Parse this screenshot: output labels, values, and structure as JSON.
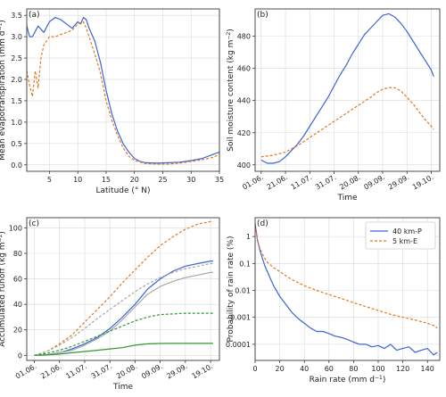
{
  "chart_data": [
    {
      "type": "line",
      "panel_label": "(a)",
      "xlabel": "Latitude (° N)",
      "ylabel": "Mean evapotranspiration (mm d",
      "ylabel_unit_sup": "−1",
      "ylabel_close": ")",
      "xlim": [
        1,
        35
      ],
      "ylim": [
        -0.15,
        3.65
      ],
      "xticks": [
        5,
        10,
        15,
        20,
        25,
        30,
        35
      ],
      "yticks": [
        0,
        0.5,
        1,
        1.5,
        2,
        2.5,
        3,
        3.5
      ],
      "ytick_labels": [
        "0.0",
        "0.5",
        "1.0",
        "1.5",
        "2.0",
        "2.5",
        "3.0",
        "3.5"
      ],
      "grid": true,
      "series": [
        {
          "color": "#3a64d8",
          "dash": "solid",
          "x": [
            1,
            1.5,
            2,
            3,
            4,
            5,
            6,
            7,
            8,
            9,
            10,
            10.5,
            11,
            11.5,
            12,
            13,
            14,
            15,
            16,
            17,
            18,
            19,
            20,
            21,
            22,
            24,
            26,
            28,
            30,
            32,
            34,
            35
          ],
          "y": [
            3.25,
            3.0,
            3.0,
            3.25,
            3.1,
            3.35,
            3.45,
            3.4,
            3.3,
            3.2,
            3.35,
            3.3,
            3.45,
            3.4,
            3.2,
            2.9,
            2.4,
            1.75,
            1.2,
            0.8,
            0.5,
            0.3,
            0.15,
            0.08,
            0.05,
            0.04,
            0.05,
            0.06,
            0.1,
            0.15,
            0.25,
            0.3
          ]
        },
        {
          "color": "#e07a1f",
          "dash": "dashed",
          "x": [
            1,
            1.5,
            2,
            2.5,
            3,
            3.5,
            4,
            5,
            6,
            7,
            8,
            9,
            10,
            11,
            11.5,
            12,
            13,
            14,
            15,
            16,
            17,
            18,
            19,
            20,
            22,
            24,
            26,
            28,
            30,
            32,
            34,
            35
          ],
          "y": [
            2.2,
            1.85,
            1.6,
            2.2,
            1.8,
            2.5,
            2.8,
            3.0,
            3.0,
            3.05,
            3.1,
            3.15,
            3.3,
            3.35,
            3.2,
            3.0,
            2.6,
            2.15,
            1.5,
            1.05,
            0.7,
            0.4,
            0.2,
            0.1,
            0.03,
            0.02,
            0.02,
            0.04,
            0.08,
            0.12,
            0.18,
            0.25
          ]
        }
      ]
    },
    {
      "type": "line",
      "panel_label": "(b)",
      "xlabel": "Time",
      "ylabel": "Soil moisture content (kg m",
      "ylabel_unit_sup": "−2",
      "ylabel_close": ")",
      "xlim": [
        -5,
        147
      ],
      "ylim": [
        396,
        497
      ],
      "xticks": [
        5,
        25,
        45,
        65,
        85,
        105,
        125
      ],
      "xtick_labels": [
        "01.06.",
        "21.06.",
        "11.07.",
        "31.07.",
        "20.08.",
        "09.09.",
        "29.09.",
        "19.10."
      ],
      "xtick_values": [
        0,
        20,
        40,
        60,
        80,
        100,
        120,
        140
      ],
      "yticks": [
        400,
        420,
        440,
        460,
        480
      ],
      "grid": true,
      "series": [
        {
          "color": "#3a64d8",
          "dash": "solid",
          "x": [
            0,
            5,
            10,
            15,
            20,
            25,
            30,
            35,
            40,
            45,
            50,
            55,
            60,
            65,
            70,
            75,
            80,
            85,
            90,
            95,
            100,
            105,
            110,
            115,
            120,
            125,
            130,
            135,
            140,
            142
          ],
          "y": [
            403,
            401,
            401,
            402,
            405,
            409,
            413,
            418,
            424,
            430,
            436,
            442,
            449,
            456,
            462,
            469,
            475,
            481,
            485,
            489,
            493,
            494,
            492,
            488,
            483,
            477,
            471,
            465,
            459,
            455
          ]
        },
        {
          "color": "#e07a1f",
          "dash": "dashed",
          "x": [
            0,
            10,
            20,
            30,
            40,
            50,
            60,
            70,
            80,
            90,
            95,
            100,
            105,
            110,
            115,
            120,
            125,
            130,
            135,
            140,
            142
          ],
          "y": [
            405,
            406,
            408,
            412,
            417,
            422,
            427,
            432,
            437,
            442,
            445,
            447,
            448,
            448,
            446,
            442,
            438,
            433,
            428,
            424,
            422
          ]
        }
      ]
    },
    {
      "type": "line",
      "panel_label": "(c)",
      "xlabel": "Time",
      "ylabel": "Accumulated runoff (kg m",
      "ylabel_unit_sup": "−2",
      "ylabel_close": ")",
      "xlim": [
        -6,
        147
      ],
      "ylim": [
        -4,
        108
      ],
      "xticks": [
        0,
        20,
        40,
        60,
        80,
        100,
        120,
        140
      ],
      "xtick_labels": [
        "01.06.",
        "21.06.",
        "11.07.",
        "31.07.",
        "20.08.",
        "09.09.",
        "29.09.",
        "19.10."
      ],
      "yticks": [
        0,
        20,
        40,
        60,
        80,
        100
      ],
      "grid": true,
      "series": [
        {
          "color": "#e07a1f",
          "dash": "dashed",
          "x": [
            0,
            10,
            20,
            30,
            40,
            50,
            60,
            70,
            80,
            90,
            100,
            110,
            120,
            130,
            140,
            142
          ],
          "y": [
            0,
            3,
            9,
            16,
            26,
            36,
            46,
            57,
            67,
            77,
            86,
            93,
            99,
            103,
            105,
            105
          ]
        },
        {
          "color": "#3a64d8",
          "dash": "solid",
          "x": [
            0,
            10,
            20,
            30,
            40,
            50,
            60,
            70,
            80,
            90,
            100,
            110,
            120,
            130,
            140,
            142
          ],
          "y": [
            0,
            0.5,
            2,
            5,
            9,
            14,
            21,
            30,
            40,
            52,
            60,
            66,
            70,
            72,
            74,
            74
          ]
        },
        {
          "color": "#a8a8a8",
          "dash": "dashed",
          "x": [
            0,
            10,
            20,
            30,
            40,
            50,
            60,
            70,
            80,
            90,
            100,
            110,
            120,
            130,
            140,
            142
          ],
          "y": [
            0,
            3,
            8,
            14,
            21,
            29,
            36,
            43,
            50,
            56,
            61,
            65,
            68,
            70,
            72,
            72
          ]
        },
        {
          "color": "#a8a8a8",
          "dash": "solid",
          "x": [
            0,
            10,
            20,
            30,
            40,
            50,
            60,
            70,
            80,
            90,
            100,
            110,
            120,
            130,
            140,
            142
          ],
          "y": [
            0,
            0.5,
            2,
            4,
            8,
            13,
            19,
            28,
            38,
            48,
            54,
            58,
            61,
            63,
            65,
            65
          ]
        },
        {
          "color": "#2e9a2e",
          "dash": "dashed",
          "x": [
            0,
            10,
            20,
            30,
            40,
            50,
            60,
            70,
            80,
            90,
            100,
            110,
            120,
            130,
            140,
            142
          ],
          "y": [
            0,
            1.5,
            4,
            7,
            11,
            15,
            19,
            23,
            27,
            30,
            32,
            32.5,
            33,
            33,
            33,
            33
          ]
        },
        {
          "color": "#2e9a2e",
          "dash": "solid",
          "x": [
            0,
            10,
            20,
            30,
            40,
            50,
            60,
            70,
            80,
            90,
            100,
            110,
            120,
            130,
            140,
            142
          ],
          "y": [
            0,
            0.3,
            1,
            2,
            3,
            4,
            5,
            6,
            8,
            9,
            9.3,
            9.4,
            9.4,
            9.4,
            9.4,
            9.4
          ]
        }
      ]
    },
    {
      "type": "line",
      "panel_label": "(d)",
      "xlabel": "Rain rate (mm d",
      "xlabel_unit_sup": "−1",
      "xlabel_close": ")",
      "ylabel": "Probability of rain rate (%)",
      "xlim": [
        0,
        150
      ],
      "ylim_log10": [
        -4.6,
        0.7
      ],
      "yscale": "log",
      "xticks": [
        0,
        20,
        40,
        60,
        80,
        100,
        120,
        140
      ],
      "yticks": [
        1,
        0.1,
        0.01,
        0.001,
        0.0001
      ],
      "ytick_labels": [
        "1",
        "0.1",
        "0.01",
        "0.001",
        "0.0001"
      ],
      "grid": true,
      "legend_position": "top-right",
      "series": [
        {
          "name": "40 km-P",
          "color": "#3a64d8",
          "dash": "solid",
          "x": [
            0,
            2,
            4,
            6,
            8,
            10,
            12,
            15,
            20,
            25,
            30,
            35,
            40,
            45,
            50,
            55,
            60,
            65,
            70,
            75,
            80,
            85,
            90,
            95,
            100,
            105,
            110,
            115,
            120,
            125,
            130,
            135,
            140,
            145,
            148
          ],
          "y": [
            3,
            0.7,
            0.3,
            0.15,
            0.08,
            0.05,
            0.03,
            0.015,
            0.006,
            0.003,
            0.0015,
            0.0009,
            0.0006,
            0.0004,
            0.0003,
            0.0003,
            0.00025,
            0.0002,
            0.00018,
            0.00015,
            0.00012,
            0.0001,
            0.0001,
            8e-05,
            9e-05,
            7e-05,
            0.0001,
            6e-05,
            7e-05,
            8e-05,
            5e-05,
            6e-05,
            7e-05,
            4e-05,
            5e-05
          ]
        },
        {
          "name": "5 km-E",
          "color": "#e07a1f",
          "dash": "dashed",
          "x": [
            0,
            2,
            4,
            6,
            8,
            10,
            15,
            20,
            25,
            30,
            40,
            50,
            60,
            70,
            80,
            90,
            100,
            110,
            120,
            130,
            140,
            145,
            148
          ],
          "y": [
            3,
            0.7,
            0.35,
            0.22,
            0.15,
            0.11,
            0.07,
            0.05,
            0.035,
            0.025,
            0.015,
            0.01,
            0.007,
            0.005,
            0.0035,
            0.0025,
            0.0018,
            0.0013,
            0.001,
            0.0008,
            0.0006,
            0.0005,
            0.0004
          ]
        }
      ]
    }
  ]
}
